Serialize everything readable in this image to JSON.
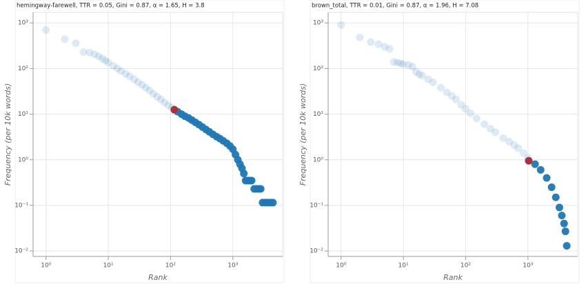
{
  "chart_data": [
    {
      "type": "scatter",
      "title": "hemingway-farewell, TTR = 0.05, Gini = 0.87, α = 1.65, H = 3.8",
      "x_label": "Rank",
      "y_label": "Frequency (per 10k words)",
      "log_x": true,
      "log_y": true,
      "grid": true,
      "color": "#1f77b4",
      "highlight_color": "#a83240",
      "xlim": [
        0.62,
        6300
      ],
      "ylim": [
        0.0076,
        1700
      ],
      "xticks": [
        {
          "value": 1,
          "label": "10⁰"
        },
        {
          "value": 10,
          "label": "10¹"
        },
        {
          "value": 100,
          "label": "10²"
        },
        {
          "value": 1000,
          "label": "10³"
        }
      ],
      "yticks": [
        {
          "value": 0.01,
          "label": "10⁻²"
        },
        {
          "value": 0.1,
          "label": "10⁻¹"
        },
        {
          "value": 1,
          "label": "10⁰"
        },
        {
          "value": 10,
          "label": "10¹"
        },
        {
          "value": 100,
          "label": "10²"
        },
        {
          "value": 1000,
          "label": "10³"
        }
      ],
      "x": [
        1,
        2,
        3,
        4,
        5,
        6,
        7,
        8,
        9,
        10,
        12,
        14,
        16,
        19,
        22,
        26,
        30,
        35,
        40,
        46,
        53,
        61,
        70,
        80,
        92,
        105,
        130,
        150,
        170,
        195,
        220,
        250,
        285,
        325,
        370,
        420,
        480,
        550,
        620,
        700,
        800,
        900,
        1000,
        1100,
        1200,
        1300,
        1400,
        1500,
        1600,
        1700,
        1800,
        1900,
        2000,
        2200,
        2400,
        2600,
        2800,
        3000,
        3300,
        3600,
        4000,
        4400
      ],
      "y": [
        700,
        440,
        360,
        230,
        225,
        205,
        185,
        165,
        150,
        135,
        115,
        100,
        88,
        77,
        68,
        58,
        50,
        44,
        38,
        33,
        28,
        24,
        21,
        18,
        15.5,
        14,
        11.3,
        10,
        9,
        8.2,
        7.4,
        6.6,
        5.9,
        5.2,
        4.6,
        4.1,
        3.6,
        3.2,
        2.9,
        2.6,
        2.3,
        2.0,
        1.7,
        1.3,
        1.0,
        0.8,
        0.65,
        0.5,
        0.35,
        0.35,
        0.35,
        0.35,
        0.35,
        0.23,
        0.23,
        0.23,
        0.23,
        0.115,
        0.115,
        0.115,
        0.115,
        0.115
      ],
      "highlight": {
        "x": 115,
        "y": 12.5
      }
    },
    {
      "type": "scatter",
      "title": "brown_total, TTR = 0.01, Gini = 0.87, α = 1.96, H = 7.08",
      "x_label": "Rank",
      "y_label": "Frequency (per 10k words)",
      "log_x": true,
      "log_y": true,
      "grid": true,
      "color": "#1f77b4",
      "highlight_color": "#a83240",
      "xlim": [
        0.62,
        6300
      ],
      "ylim": [
        0.0076,
        1700
      ],
      "xticks": [
        {
          "value": 1,
          "label": "10⁰"
        },
        {
          "value": 10,
          "label": "10¹"
        },
        {
          "value": 100,
          "label": "10²"
        },
        {
          "value": 1000,
          "label": "10³"
        }
      ],
      "yticks": [
        {
          "value": 0.01,
          "label": "10⁻²"
        },
        {
          "value": 0.1,
          "label": "10⁻¹"
        },
        {
          "value": 1,
          "label": "10⁰"
        },
        {
          "value": 10,
          "label": "10¹"
        },
        {
          "value": 100,
          "label": "10²"
        },
        {
          "value": 1000,
          "label": "10³"
        }
      ],
      "x": [
        1,
        2,
        3,
        4,
        5,
        6,
        7,
        8,
        9,
        10,
        12,
        14,
        16,
        18,
        20,
        25,
        30,
        40,
        50,
        60,
        70,
        85,
        100,
        120,
        150,
        200,
        250,
        300,
        400,
        500,
        600,
        700,
        850,
        1000,
        1300,
        1600,
        2000,
        2400,
        2800,
        3200,
        3500,
        3800,
        4000,
        4200
      ],
      "y": [
        900,
        480,
        380,
        340,
        300,
        270,
        140,
        135,
        130,
        125,
        120,
        110,
        85,
        75,
        70,
        58,
        50,
        38,
        30,
        25,
        21,
        16,
        13,
        10.5,
        8,
        6,
        4.8,
        4,
        3,
        2.5,
        2.1,
        1.8,
        1.4,
        1.1,
        0.8,
        0.6,
        0.4,
        0.25,
        0.15,
        0.09,
        0.06,
        0.04,
        0.027,
        0.013
      ],
      "highlight": {
        "x": 1030,
        "y": 0.95
      }
    }
  ]
}
